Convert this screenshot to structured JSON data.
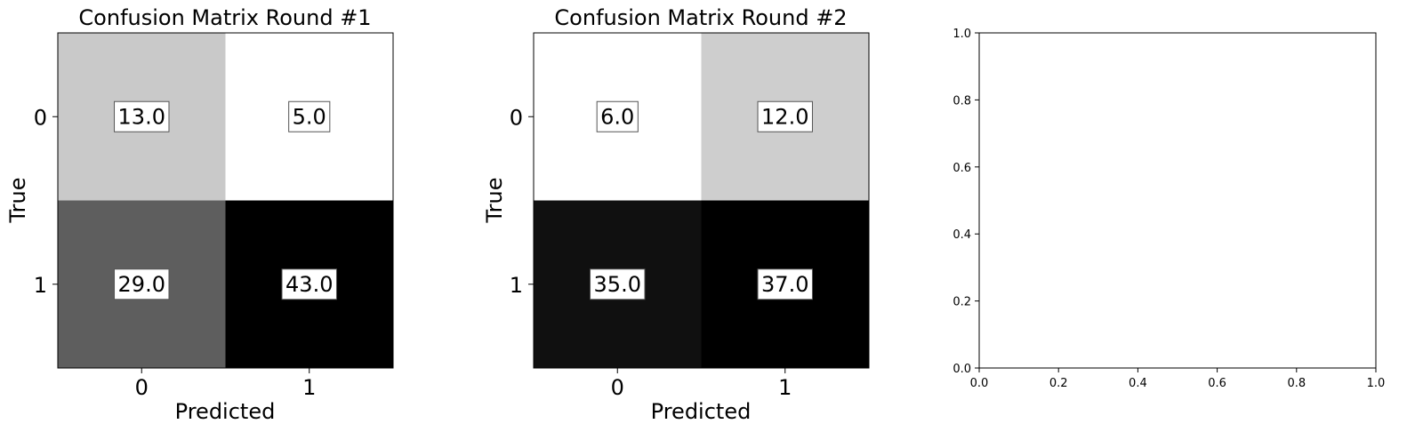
{
  "chart_data": [
    {
      "type": "heatmap",
      "title": "Confusion Matrix Round #1",
      "xlabel": "Predicted",
      "ylabel": "True",
      "x_ticks": [
        "0",
        "1"
      ],
      "y_ticks": [
        "0",
        "1"
      ],
      "values": [
        [
          13.0,
          5.0
        ],
        [
          29.0,
          43.0
        ]
      ],
      "value_labels": [
        [
          "13.0",
          "5.0"
        ],
        [
          "29.0",
          "43.0"
        ]
      ],
      "colormap": "gray_r",
      "grid": false
    },
    {
      "type": "heatmap",
      "title": "Confusion Matrix Round #2",
      "xlabel": "Predicted",
      "ylabel": "True",
      "x_ticks": [
        "0",
        "1"
      ],
      "y_ticks": [
        "0",
        "1"
      ],
      "values": [
        [
          6.0,
          12.0
        ],
        [
          35.0,
          37.0
        ]
      ],
      "value_labels": [
        [
          "6.0",
          "12.0"
        ],
        [
          "35.0",
          "37.0"
        ]
      ],
      "colormap": "gray_r",
      "grid": false
    },
    {
      "type": "line",
      "title": "",
      "xlabel": "",
      "ylabel": "",
      "series": [],
      "xlim": [
        0.0,
        1.0
      ],
      "ylim": [
        0.0,
        1.0
      ],
      "x_ticks": [
        "0.0",
        "0.2",
        "0.4",
        "0.6",
        "0.8",
        "1.0"
      ],
      "y_ticks": [
        "0.0",
        "0.2",
        "0.4",
        "0.6",
        "0.8",
        "1.0"
      ],
      "grid": false
    }
  ],
  "colors": {
    "text": "#000000",
    "cell_low": "#ffffff",
    "cell_high": "#000000",
    "label_box_fill": "#ffffff",
    "label_box_edge": "#555555"
  }
}
